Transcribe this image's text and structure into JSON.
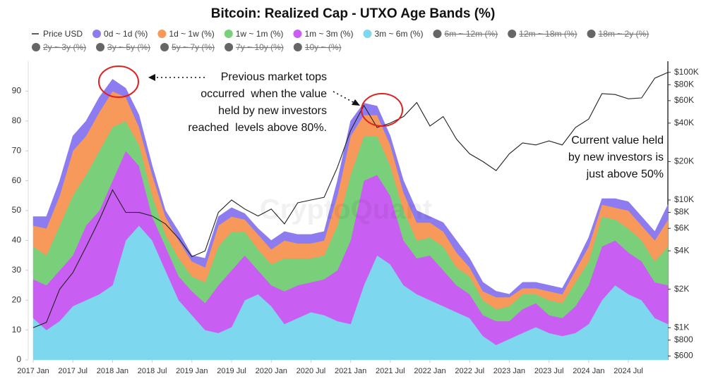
{
  "chart_data": {
    "type": "stacked_area",
    "title": "Bitcoin: Realized Cap - UTXO Age Bands (%)",
    "watermark": "CryptoQuant",
    "x": [
      "2017-01",
      "2017-03",
      "2017-05",
      "2017-07",
      "2017-09",
      "2017-11",
      "2018-01",
      "2018-03",
      "2018-05",
      "2018-07",
      "2018-09",
      "2018-11",
      "2019-01",
      "2019-03",
      "2019-05",
      "2019-07",
      "2019-09",
      "2019-11",
      "2020-01",
      "2020-03",
      "2020-05",
      "2020-07",
      "2020-09",
      "2020-11",
      "2021-01",
      "2021-03",
      "2021-05",
      "2021-07",
      "2021-09",
      "2021-11",
      "2022-01",
      "2022-03",
      "2022-05",
      "2022-07",
      "2022-09",
      "2022-11",
      "2023-01",
      "2023-03",
      "2023-05",
      "2023-07",
      "2023-09",
      "2023-11",
      "2024-01",
      "2024-03",
      "2024-05",
      "2024-07",
      "2024-09",
      "2024-11",
      "2025-01"
    ],
    "xticks": [
      {
        "value": "2017-01",
        "label": "2017 Jan"
      },
      {
        "value": "2017-07",
        "label": "2017 Jul"
      },
      {
        "value": "2018-01",
        "label": "2018 Jan"
      },
      {
        "value": "2018-07",
        "label": "2018 Jul"
      },
      {
        "value": "2019-01",
        "label": "2019 Jan"
      },
      {
        "value": "2019-07",
        "label": "2019 Jul"
      },
      {
        "value": "2020-01",
        "label": "2020 Jan"
      },
      {
        "value": "2020-07",
        "label": "2020 Jul"
      },
      {
        "value": "2021-01",
        "label": "2021 Jan"
      },
      {
        "value": "2021-07",
        "label": "2021 Jul"
      },
      {
        "value": "2022-01",
        "label": "2022 Jan"
      },
      {
        "value": "2022-07",
        "label": "2022 Jul"
      },
      {
        "value": "2023-01",
        "label": "2023 Jan"
      },
      {
        "value": "2023-07",
        "label": "2023 Jul"
      },
      {
        "value": "2024-01",
        "label": "2024 Jan"
      },
      {
        "value": "2024-07",
        "label": "2024 Jul"
      }
    ],
    "ylim": [
      0,
      100
    ],
    "yticks": [
      0,
      10,
      20,
      30,
      40,
      50,
      60,
      70,
      80,
      90
    ],
    "y2lim": [
      560,
      122000
    ],
    "y2scale": "log",
    "y2ticks": [
      {
        "value": 600,
        "label": "$600"
      },
      {
        "value": 800,
        "label": "$800"
      },
      {
        "value": 1000,
        "label": "$1K"
      },
      {
        "value": 2000,
        "label": "$2K"
      },
      {
        "value": 4000,
        "label": "$4K"
      },
      {
        "value": 6000,
        "label": "$6K"
      },
      {
        "value": 8000,
        "label": "$8K"
      },
      {
        "value": 10000,
        "label": "$10K"
      },
      {
        "value": 20000,
        "label": "$20K"
      },
      {
        "value": 40000,
        "label": "$40K"
      },
      {
        "value": 60000,
        "label": "$60K"
      },
      {
        "value": 80000,
        "label": "$80K"
      },
      {
        "value": 100000,
        "label": "$100K"
      }
    ],
    "grid": false,
    "stacked": true,
    "series": [
      {
        "name": "Price USD",
        "color": "#222222",
        "axis": "y2",
        "values": [
          1000,
          1100,
          2000,
          2700,
          4300,
          7000,
          12000,
          8000,
          8000,
          7500,
          6500,
          5000,
          3600,
          4000,
          8000,
          10000,
          8500,
          7500,
          8500,
          6500,
          9500,
          10000,
          10500,
          18000,
          35000,
          55000,
          37000,
          40000,
          45000,
          58000,
          38000,
          45000,
          30000,
          23000,
          20000,
          17000,
          23000,
          28000,
          27000,
          29000,
          27000,
          37000,
          43000,
          68000,
          67000,
          62000,
          63000,
          90000,
          100000
        ]
      },
      {
        "name": "0d ~ 1d (%)",
        "color": "#8c7cf0",
        "values": [
          3,
          4,
          5,
          5,
          5,
          5,
          4,
          3,
          4,
          3,
          2,
          3,
          2,
          3,
          3,
          3,
          2,
          2,
          3,
          3,
          3,
          3,
          3,
          5,
          5,
          4,
          3,
          3,
          4,
          4,
          2,
          3,
          4,
          3,
          3,
          2,
          1,
          2,
          2,
          2,
          2,
          2,
          3,
          2,
          3,
          3,
          3,
          3,
          5
        ]
      },
      {
        "name": "1d ~ 1w (%)",
        "color": "#f7995a",
        "values": [
          7,
          9,
          10,
          15,
          13,
          13,
          12,
          8,
          6,
          7,
          6,
          6,
          5,
          5,
          7,
          5,
          4,
          5,
          5,
          6,
          5,
          5,
          5,
          10,
          13,
          7,
          7,
          7,
          6,
          6,
          5,
          5,
          5,
          3,
          3,
          4,
          3,
          2,
          2,
          3,
          3,
          4,
          5,
          4,
          4,
          6,
          5,
          7,
          9
        ]
      },
      {
        "name": "1w ~ 1m (%)",
        "color": "#79cf7a",
        "values": [
          11,
          10,
          15,
          20,
          17,
          20,
          18,
          10,
          7,
          7,
          4,
          6,
          5,
          7,
          13,
          13,
          8,
          7,
          7,
          11,
          9,
          8,
          8,
          15,
          22,
          15,
          13,
          10,
          10,
          6,
          6,
          8,
          6,
          6,
          5,
          4,
          5,
          5,
          3,
          5,
          5,
          8,
          8,
          10,
          7,
          8,
          7,
          7,
          13
        ]
      },
      {
        "name": "1m ~ 3m (%)",
        "color": "#c95ff2",
        "values": [
          13,
          15,
          17,
          17,
          25,
          28,
          35,
          30,
          20,
          8,
          8,
          8,
          8,
          9,
          16,
          19,
          15,
          8,
          7,
          11,
          11,
          10,
          12,
          17,
          28,
          35,
          27,
          23,
          15,
          12,
          15,
          12,
          9,
          8,
          7,
          8,
          6,
          8,
          8,
          6,
          6,
          9,
          13,
          18,
          15,
          14,
          13,
          12,
          13
        ]
      },
      {
        "name": "3m ~ 6m (%)",
        "color": "#7dd7ef",
        "values": [
          14,
          10,
          13,
          18,
          20,
          22,
          25,
          40,
          45,
          40,
          30,
          20,
          15,
          10,
          9,
          11,
          20,
          22,
          18,
          12,
          14,
          16,
          15,
          13,
          12,
          25,
          35,
          32,
          25,
          22,
          20,
          18,
          16,
          14,
          8,
          5,
          7,
          9,
          11,
          9,
          8,
          9,
          12,
          20,
          25,
          22,
          20,
          14,
          12
        ]
      }
    ],
    "hidden_series": [
      {
        "name": "6m ~ 12m (%)",
        "color": "#666666"
      },
      {
        "name": "12m ~ 18m (%)",
        "color": "#666666"
      },
      {
        "name": "18m ~ 2y (%)",
        "color": "#666666"
      },
      {
        "name": "2y ~ 3y (%)",
        "color": "#666666"
      },
      {
        "name": "3y ~ 5y (%)",
        "color": "#666666"
      },
      {
        "name": "5y ~ 7y (%)",
        "color": "#666666"
      },
      {
        "name": "7y ~ 10y (%)",
        "color": "#666666"
      },
      {
        "name": "10y ~ (%)",
        "color": "#666666"
      }
    ],
    "annotations": [
      {
        "lines": [
          "Previous market tops",
          "occurred  when the value",
          "held by new investors",
          "reached  levels above 80%."
        ]
      },
      {
        "lines": [
          "Current value held",
          "by new investors is",
          "just above 50%"
        ]
      }
    ]
  }
}
